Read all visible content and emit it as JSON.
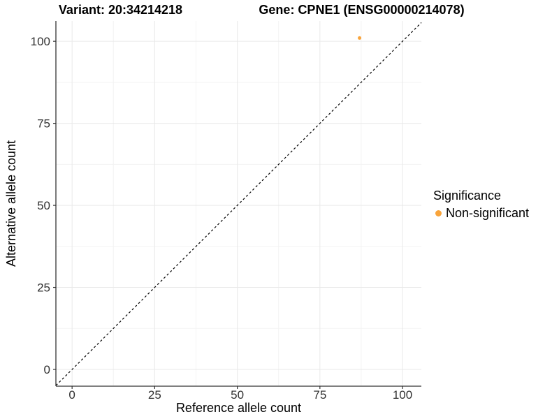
{
  "chart_data": {
    "type": "scatter",
    "title_left": "Variant: 20:34214218",
    "title_right": "Gene: CPNE1 (ENSG00000214078)",
    "xlabel": "Reference allele count",
    "ylabel": "Alternative allele count",
    "x_ticks": [
      0,
      25,
      50,
      75,
      100
    ],
    "y_ticks": [
      0,
      25,
      50,
      75,
      100
    ],
    "xlim": [
      -4.9,
      105.7
    ],
    "ylim": [
      -5.1,
      106.2
    ],
    "grid": "major-and-minor",
    "points": [
      {
        "x": 87,
        "y": 101,
        "series": "Non-significant"
      }
    ],
    "point_radius": 2.5,
    "identity_line": {
      "slope": 1,
      "intercept": 0,
      "linetype": "dashed",
      "color": "#000000"
    },
    "legend": {
      "title": "Significance",
      "position": "right",
      "entries": [
        {
          "label": "Non-significant",
          "color": "#F9A43B"
        }
      ]
    }
  }
}
